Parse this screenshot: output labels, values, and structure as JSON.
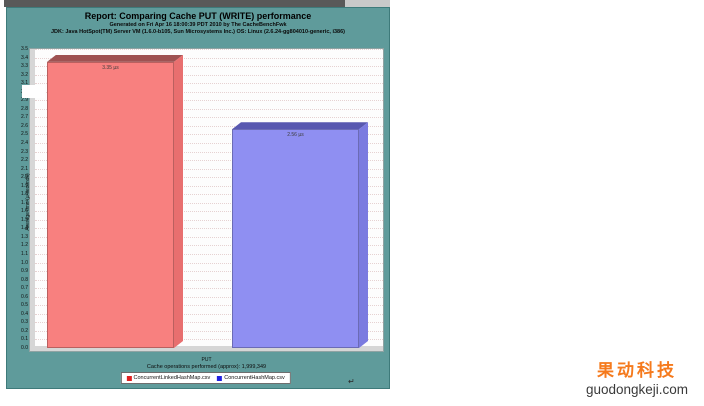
{
  "chart_data": {
    "type": "bar",
    "title": "Report: Comparing Cache PUT (WRITE) performance",
    "subtitle1": "Generated on Fri Apr 16 18:00:39 PDT 2010 by The CacheBenchFwk",
    "subtitle2": "JDK: Java HotSpot(TM) Server VM (1.6.0-b105, Sun Microsystems Inc.) OS: Linux (2.6.24-gg804010-generic, i386)",
    "categories": [
      "PUT"
    ],
    "series": [
      {
        "name": "ConcurrentLinkedHashMap.csv",
        "values": [
          3.35
        ],
        "value_label": "3.35 µs",
        "color": "#f8807f",
        "color_top": "#9e5252",
        "color_side": "#e86f6f",
        "legend_swatch": "#e02020"
      },
      {
        "name": "ConcurrentHashMap.csv",
        "values": [
          2.56
        ],
        "value_label": "2.56 µs",
        "color": "#8f8ff2",
        "color_top": "#5858b0",
        "color_side": "#7b7be0",
        "legend_swatch": "#2020e0"
      }
    ],
    "xlabel": "PUT",
    "ylabel": "Average time (µ-seconds)",
    "ylim": [
      0,
      3.5
    ],
    "ytick_step": 0.1,
    "grid": "horizontal-dotted",
    "legend_position": "bottom"
  },
  "footer": {
    "operations_note": "Cache operations performed (approx): 1,999,349"
  },
  "watermark": {
    "brand_cn": "果动科技",
    "brand_en": "guodongkeji.com",
    "accent_color": "#f57a1d"
  },
  "marks": {
    "return_mark": "↵"
  },
  "colors": {
    "panel_teal": "#5f9b9b",
    "strip_dark": "#595959",
    "strip_light": "#c9c9c9"
  }
}
